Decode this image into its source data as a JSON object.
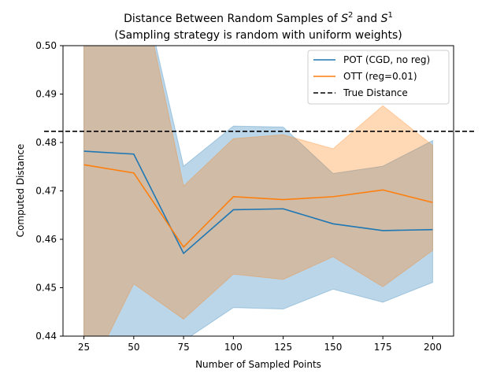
{
  "chart_data": {
    "type": "line",
    "title_line1_prefix": "Distance Between Random Samples of ",
    "title_line1_s2": "S",
    "title_line1_s2_sup": "2",
    "title_line1_mid": " and ",
    "title_line1_s1": "S",
    "title_line1_s1_sup": "1",
    "title_line2": "(Sampling strategy is random with uniform weights)",
    "xlabel": "Number of Sampled Points",
    "ylabel": "Computed Distance",
    "x": [
      25,
      50,
      75,
      100,
      125,
      150,
      175,
      200
    ],
    "xlim": [
      14.5,
      210.5
    ],
    "ylim": [
      0.44,
      0.5
    ],
    "xticks": [
      "25",
      "50",
      "75",
      "100",
      "125",
      "150",
      "175",
      "200"
    ],
    "yticks": [
      "0.44",
      "0.45",
      "0.46",
      "0.47",
      "0.48",
      "0.49",
      "0.50"
    ],
    "legend_position": "top-right",
    "series": [
      {
        "name": "POT (CGD, no reg)",
        "color": "#1f77b4",
        "values": [
          0.4782,
          0.4776,
          0.4571,
          0.4661,
          0.4663,
          0.4632,
          0.4618,
          0.462
        ],
        "upper": [
          0.52,
          0.52,
          0.4751,
          0.4834,
          0.4832,
          0.4736,
          0.4751,
          0.4804
        ],
        "lower": [
          0.43,
          0.43,
          0.439,
          0.4459,
          0.4456,
          0.4497,
          0.447,
          0.4511
        ]
      },
      {
        "name": "OTT (reg=0.01)",
        "color": "#ff7f0e",
        "values": [
          0.4754,
          0.4737,
          0.4584,
          0.4688,
          0.4682,
          0.4688,
          0.4702,
          0.4676
        ],
        "upper": [
          0.52,
          0.52,
          0.471,
          0.4808,
          0.4816,
          0.4787,
          0.4876,
          0.4794
        ],
        "lower": [
          0.43,
          0.4508,
          0.4435,
          0.4528,
          0.4517,
          0.4564,
          0.4502,
          0.4577
        ]
      }
    ],
    "reference_line": {
      "name": "True Distance",
      "value": 0.4823,
      "color": "#000000",
      "style": "dashed"
    }
  }
}
